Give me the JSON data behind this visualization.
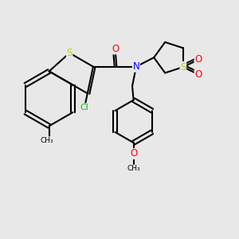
{
  "bg_color": "#e8e8e8",
  "atom_colors": {
    "C": "#000000",
    "H": "#000000",
    "O": "#ff0000",
    "N": "#0000ff",
    "S": "#cccc00",
    "Cl": "#00cc00"
  },
  "bond_color": "#000000",
  "bond_width": 1.5
}
